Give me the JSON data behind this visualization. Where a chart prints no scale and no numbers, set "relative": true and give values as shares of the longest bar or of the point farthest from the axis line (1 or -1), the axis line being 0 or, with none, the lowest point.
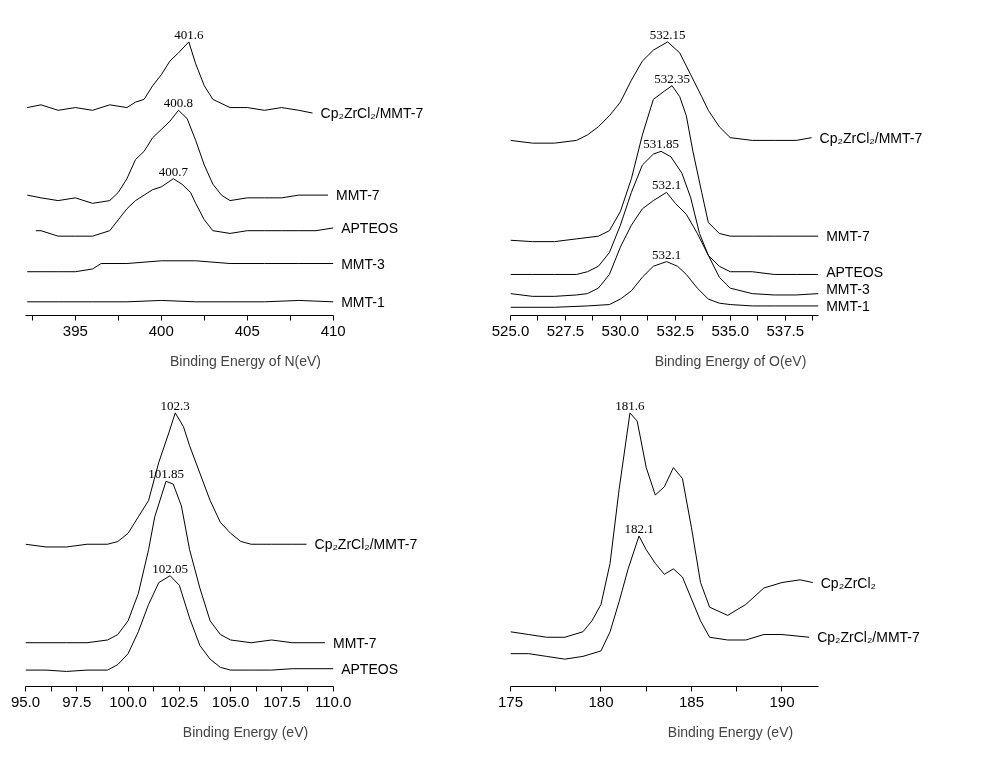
{
  "chart_data": [
    {
      "type": "line",
      "xlabel": "Binding Energy of N(eV)",
      "relative": true,
      "xlim": [
        392.1,
        410
      ],
      "xticks": [
        {
          "value": 392.5,
          "label": null
        },
        395,
        {
          "value": 397.5,
          "label": null
        },
        400,
        {
          "value": 402.5,
          "label": null
        },
        405,
        {
          "value": 407.5,
          "label": null
        },
        410
      ],
      "series": [
        {
          "name": "Cp₂ZrCl₂/MMT-7",
          "color": "#000000",
          "x": [
            392.2,
            393,
            394,
            395,
            396,
            397,
            398,
            398.5,
            399,
            399.5,
            400,
            400.5,
            401,
            401.6,
            402,
            402.5,
            403,
            404,
            405,
            406,
            407,
            408,
            408.8
          ],
          "values": [
            0.76,
            0.77,
            0.75,
            0.76,
            0.75,
            0.77,
            0.76,
            0.78,
            0.79,
            0.84,
            0.88,
            0.93,
            0.96,
            1.0,
            0.92,
            0.84,
            0.79,
            0.76,
            0.76,
            0.75,
            0.76,
            0.75,
            0.74
          ]
        },
        {
          "name": "MMT-7",
          "color": "#000000",
          "x": [
            392.2,
            393,
            394,
            395,
            396,
            397,
            397.5,
            398,
            398.5,
            399,
            399.5,
            400,
            400.5,
            401,
            401.5,
            402,
            402.5,
            403,
            403.5,
            404,
            405,
            406,
            407,
            408,
            409,
            409.7
          ],
          "values": [
            0.44,
            0.43,
            0.42,
            0.43,
            0.41,
            0.42,
            0.45,
            0.5,
            0.57,
            0.6,
            0.65,
            0.68,
            0.71,
            0.75,
            0.72,
            0.64,
            0.55,
            0.48,
            0.44,
            0.42,
            0.43,
            0.43,
            0.43,
            0.44,
            0.44,
            0.44
          ]
        },
        {
          "name": "APTEOS",
          "color": "#000000",
          "x": [
            392.7,
            393,
            394,
            395,
            396,
            397,
            397.5,
            398,
            398.5,
            399,
            399.5,
            400,
            400.7,
            401.2,
            401.7,
            402,
            402.5,
            403,
            404,
            405,
            406,
            407,
            408,
            409,
            410
          ],
          "values": [
            0.31,
            0.31,
            0.29,
            0.29,
            0.29,
            0.31,
            0.35,
            0.39,
            0.42,
            0.44,
            0.46,
            0.47,
            0.5,
            0.48,
            0.45,
            0.41,
            0.35,
            0.31,
            0.3,
            0.31,
            0.31,
            0.31,
            0.31,
            0.31,
            0.32
          ]
        },
        {
          "name": "MMT-3",
          "color": "#000000",
          "x": [
            392.2,
            393,
            394,
            395,
            396,
            396.5,
            398,
            400,
            402,
            404,
            406,
            408,
            410
          ],
          "values": [
            0.16,
            0.16,
            0.16,
            0.16,
            0.17,
            0.19,
            0.19,
            0.2,
            0.2,
            0.19,
            0.19,
            0.19,
            0.19
          ]
        },
        {
          "name": "MMT-1",
          "color": "#000000",
          "x": [
            392.2,
            394,
            396,
            398,
            400,
            402,
            404,
            406,
            408,
            410
          ],
          "values": [
            0.05,
            0.05,
            0.05,
            0.05,
            0.055,
            0.05,
            0.05,
            0.05,
            0.055,
            0.05
          ]
        }
      ],
      "annotations": [
        {
          "text": "401.6",
          "x": 401.6,
          "y": 1.0
        },
        {
          "text": "400.8",
          "x": 401,
          "y": 0.75
        },
        {
          "text": "400.7",
          "x": 400.7,
          "y": 0.5
        }
      ]
    },
    {
      "type": "line",
      "xlabel": "Binding Energy of O(eV)",
      "relative": true,
      "xlim": [
        525,
        539
      ],
      "xticks": [
        {
          "value": 525,
          "label": "525.0"
        },
        {
          "value": 526.25,
          "label": null
        },
        {
          "value": 527.5,
          "label": "527.5"
        },
        {
          "value": 528.75,
          "label": null
        },
        {
          "value": 530,
          "label": "530.0"
        },
        {
          "value": 531.25,
          "label": null
        },
        {
          "value": 532.5,
          "label": "532.5"
        },
        {
          "value": 533.75,
          "label": null
        },
        {
          "value": 535,
          "label": "535.0"
        },
        {
          "value": 536.25,
          "label": null
        },
        {
          "value": 537.5,
          "label": "537.5"
        },
        {
          "value": 538.75,
          "label": null
        }
      ],
      "series": [
        {
          "name": "Cp₂ZrCl₂/MMT-7",
          "color": "#000000",
          "x": [
            525,
            526,
            527,
            528,
            528.5,
            529,
            529.5,
            530,
            530.5,
            531,
            531.5,
            532.15,
            532.7,
            533.2,
            533.7,
            534,
            534.5,
            535,
            536,
            537,
            538,
            538.7
          ],
          "values": [
            0.64,
            0.63,
            0.63,
            0.64,
            0.66,
            0.69,
            0.73,
            0.78,
            0.86,
            0.93,
            0.97,
            1.0,
            0.96,
            0.88,
            0.8,
            0.75,
            0.69,
            0.65,
            0.64,
            0.64,
            0.64,
            0.65
          ]
        },
        {
          "name": "MMT-7",
          "color": "#000000",
          "x": [
            525,
            526,
            527,
            528,
            529,
            529.5,
            530,
            530.5,
            531,
            531.5,
            532,
            532.35,
            532.7,
            533,
            533.3,
            533.7,
            534,
            534.5,
            535,
            536,
            537,
            538,
            539
          ],
          "values": [
            0.275,
            0.27,
            0.27,
            0.28,
            0.29,
            0.31,
            0.38,
            0.5,
            0.66,
            0.79,
            0.82,
            0.84,
            0.8,
            0.73,
            0.6,
            0.45,
            0.34,
            0.3,
            0.29,
            0.29,
            0.29,
            0.29,
            0.29
          ]
        },
        {
          "name": "APTEOS",
          "color": "#000000",
          "x": [
            525,
            526,
            527,
            528,
            528.5,
            529,
            529.5,
            530,
            530.5,
            531,
            531.5,
            531.85,
            532.3,
            532.8,
            533.2,
            533.6,
            534,
            534.5,
            535,
            536,
            537,
            538,
            539
          ],
          "values": [
            0.15,
            0.15,
            0.15,
            0.15,
            0.16,
            0.18,
            0.23,
            0.33,
            0.45,
            0.55,
            0.59,
            0.6,
            0.58,
            0.52,
            0.43,
            0.3,
            0.22,
            0.18,
            0.16,
            0.16,
            0.15,
            0.15,
            0.15
          ]
        },
        {
          "name": "MMT-3",
          "color": "#000000",
          "x": [
            525,
            526,
            527,
            528,
            528.5,
            529,
            529.5,
            530,
            530.5,
            531,
            531.5,
            532.1,
            532.5,
            533,
            533.5,
            534,
            534.5,
            535,
            536,
            537,
            538,
            539
          ],
          "values": [
            0.08,
            0.07,
            0.07,
            0.075,
            0.08,
            0.1,
            0.15,
            0.25,
            0.33,
            0.39,
            0.42,
            0.45,
            0.41,
            0.37,
            0.3,
            0.22,
            0.14,
            0.1,
            0.08,
            0.075,
            0.075,
            0.08
          ]
        },
        {
          "name": "MMT-1",
          "color": "#000000",
          "x": [
            525,
            527,
            528.5,
            529.5,
            530,
            530.5,
            531,
            531.5,
            532.1,
            532.6,
            533,
            533.5,
            534,
            534.5,
            535,
            536,
            537,
            539
          ],
          "values": [
            0.03,
            0.03,
            0.035,
            0.04,
            0.06,
            0.09,
            0.14,
            0.18,
            0.197,
            0.18,
            0.15,
            0.1,
            0.06,
            0.045,
            0.04,
            0.035,
            0.035,
            0.035
          ]
        }
      ],
      "annotations": [
        {
          "text": "532.15",
          "x": 532.15,
          "y": 1.0
        },
        {
          "text": "532.35",
          "x": 532.35,
          "y": 0.84
        },
        {
          "text": "531.85",
          "x": 531.85,
          "y": 0.6
        },
        {
          "text": "532.1",
          "x": 532.1,
          "y": 0.45
        },
        {
          "text": "532.1",
          "x": 532.1,
          "y": 0.197
        }
      ]
    },
    {
      "type": "line",
      "xlabel": "Binding Energy (eV)",
      "relative": true,
      "xlim": [
        95,
        110
      ],
      "xticks": [
        {
          "value": 95,
          "label": "95.0"
        },
        {
          "value": 96.25,
          "label": null
        },
        {
          "value": 97.5,
          "label": "97.5"
        },
        {
          "value": 98.75,
          "label": null
        },
        {
          "value": 100,
          "label": "100.0"
        },
        {
          "value": 101.25,
          "label": null
        },
        {
          "value": 102.5,
          "label": "102.5"
        },
        {
          "value": 103.75,
          "label": null
        },
        {
          "value": 105,
          "label": "105.0"
        },
        {
          "value": 106.25,
          "label": null
        },
        {
          "value": 107.5,
          "label": "107.5"
        },
        {
          "value": 108.75,
          "label": null
        },
        {
          "value": 110,
          "label": "110.0"
        }
      ],
      "series": [
        {
          "name": "Cp₂ZrCl₂/MMT-7",
          "color": "#000000",
          "x": [
            95,
            96,
            97,
            98,
            99,
            99.5,
            100,
            100.5,
            101,
            101.5,
            102,
            102.3,
            102.7,
            103,
            103.5,
            104,
            104.5,
            105,
            105.5,
            106,
            107,
            108,
            108.7
          ],
          "values": [
            0.52,
            0.51,
            0.51,
            0.52,
            0.52,
            0.53,
            0.56,
            0.62,
            0.68,
            0.82,
            0.93,
            1.0,
            0.95,
            0.88,
            0.78,
            0.68,
            0.6,
            0.56,
            0.53,
            0.52,
            0.52,
            0.52,
            0.52
          ]
        },
        {
          "name": "MMT-7",
          "color": "#000000",
          "x": [
            95,
            96,
            97,
            98,
            99,
            99.5,
            100,
            100.5,
            101,
            101.3,
            101.85,
            102.2,
            102.6,
            103,
            103.5,
            104,
            104.5,
            105,
            106,
            107,
            108,
            109.6
          ],
          "values": [
            0.16,
            0.16,
            0.16,
            0.16,
            0.17,
            0.19,
            0.24,
            0.34,
            0.5,
            0.62,
            0.75,
            0.74,
            0.66,
            0.5,
            0.36,
            0.24,
            0.19,
            0.17,
            0.16,
            0.17,
            0.16,
            0.16
          ]
        },
        {
          "name": "APTEOS",
          "color": "#000000",
          "x": [
            95,
            96,
            97,
            98,
            99,
            99.5,
            100,
            100.5,
            101,
            101.5,
            102.05,
            102.5,
            103,
            103.5,
            104,
            104.5,
            105,
            106,
            107,
            108,
            110
          ],
          "values": [
            0.06,
            0.06,
            0.055,
            0.06,
            0.06,
            0.08,
            0.12,
            0.2,
            0.3,
            0.38,
            0.405,
            0.37,
            0.25,
            0.15,
            0.1,
            0.07,
            0.06,
            0.06,
            0.06,
            0.065,
            0.065
          ]
        }
      ],
      "annotations": [
        {
          "text": "102.3",
          "x": 102.3,
          "y": 1.0
        },
        {
          "text": "101.85",
          "x": 101.85,
          "y": 0.75
        },
        {
          "text": "102.05",
          "x": 102.05,
          "y": 0.405
        }
      ]
    },
    {
      "type": "line",
      "xlabel": "Binding Energy (eV)",
      "relative": true,
      "xlim": [
        175,
        192
      ],
      "xticks": [
        175,
        {
          "value": 177.5,
          "label": null
        },
        180,
        {
          "value": 182.5,
          "label": null
        },
        185,
        {
          "value": 187.5,
          "label": null
        },
        190
      ],
      "series": [
        {
          "name": "Cp₂ZrCl₂",
          "color": "#000000",
          "x": [
            175,
            176,
            177,
            178,
            179,
            179.5,
            180,
            180.5,
            181,
            181.6,
            182,
            182.5,
            183,
            183.5,
            184,
            184.5,
            185,
            185.5,
            186,
            187,
            188,
            189,
            190,
            191,
            191.7
          ],
          "values": [
            0.2,
            0.19,
            0.18,
            0.18,
            0.2,
            0.24,
            0.3,
            0.45,
            0.72,
            1.0,
            0.97,
            0.8,
            0.7,
            0.73,
            0.8,
            0.76,
            0.58,
            0.38,
            0.29,
            0.26,
            0.3,
            0.36,
            0.38,
            0.39,
            0.38
          ]
        },
        {
          "name": "Cp₂ZrCl₂/MMT-7",
          "color": "#000000",
          "x": [
            175,
            176,
            177,
            178,
            179,
            180,
            180.5,
            181,
            181.5,
            182.1,
            182.5,
            183,
            183.5,
            184,
            184.5,
            185,
            185.5,
            186,
            187,
            188,
            189,
            190,
            191.5
          ],
          "values": [
            0.12,
            0.12,
            0.11,
            0.1,
            0.11,
            0.13,
            0.2,
            0.31,
            0.43,
            0.55,
            0.5,
            0.45,
            0.41,
            0.43,
            0.4,
            0.32,
            0.24,
            0.18,
            0.17,
            0.17,
            0.19,
            0.19,
            0.18
          ]
        }
      ],
      "annotations": [
        {
          "text": "181.6",
          "x": 181.6,
          "y": 1.0
        },
        {
          "text": "182.1",
          "x": 182.1,
          "y": 0.55
        }
      ]
    }
  ]
}
